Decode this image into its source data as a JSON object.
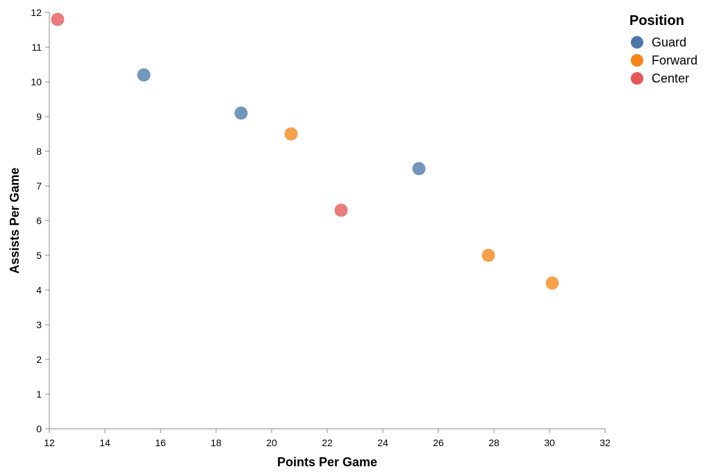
{
  "chart_data": {
    "type": "scatter",
    "title": "",
    "xlabel": "Points Per Game",
    "ylabel": "Assists Per Game",
    "xlim": [
      12,
      32
    ],
    "ylim": [
      0,
      12
    ],
    "xticks": [
      12,
      14,
      16,
      18,
      20,
      22,
      24,
      26,
      28,
      30,
      32
    ],
    "yticks": [
      0,
      1,
      2,
      3,
      4,
      5,
      6,
      7,
      8,
      9,
      10,
      11,
      12
    ],
    "grid": false,
    "legend": {
      "title": "Position",
      "placement": "top-right",
      "entries": [
        {
          "name": "Guard",
          "color": "#4c78a8"
        },
        {
          "name": "Forward",
          "color": "#f58518"
        },
        {
          "name": "Center",
          "color": "#e45756"
        }
      ]
    },
    "points": [
      {
        "x": 12.3,
        "y": 11.8,
        "position": "Center"
      },
      {
        "x": 15.4,
        "y": 10.2,
        "position": "Guard"
      },
      {
        "x": 18.9,
        "y": 9.1,
        "position": "Guard"
      },
      {
        "x": 20.7,
        "y": 8.5,
        "position": "Forward"
      },
      {
        "x": 25.3,
        "y": 7.5,
        "position": "Guard"
      },
      {
        "x": 22.5,
        "y": 6.3,
        "position": "Center"
      },
      {
        "x": 27.8,
        "y": 5.0,
        "position": "Forward"
      },
      {
        "x": 30.1,
        "y": 4.2,
        "position": "Forward"
      }
    ]
  }
}
